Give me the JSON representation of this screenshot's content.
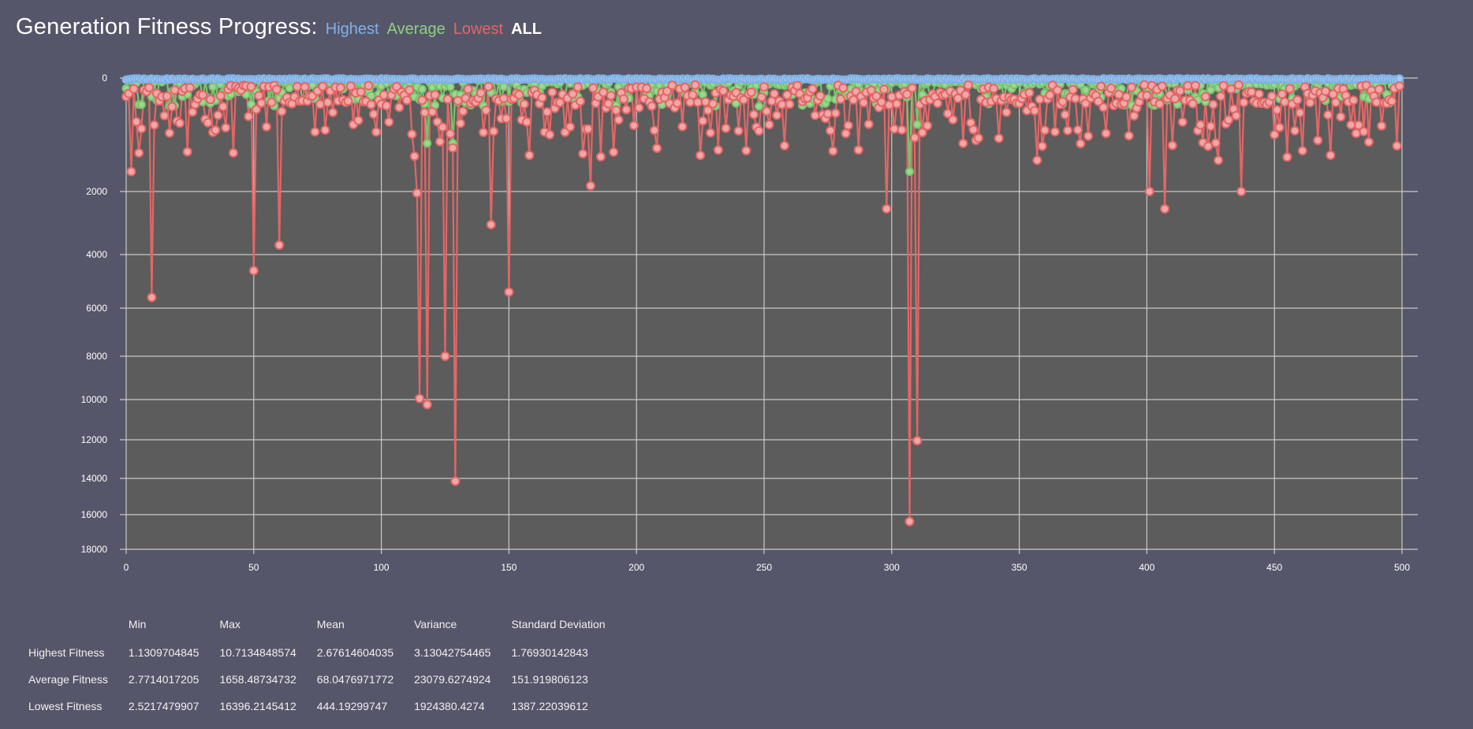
{
  "header": {
    "title": "Generation Fitness Progress:",
    "filters": [
      {
        "label": "Highest",
        "color": "#7fb1e6"
      },
      {
        "label": "Average",
        "color": "#8ed081"
      },
      {
        "label": "Lowest",
        "color": "#e26666"
      },
      {
        "label": "ALL",
        "color": "#ffffff"
      }
    ]
  },
  "colors": {
    "background": "#56566a",
    "plot_area": "#5c5c5c",
    "grid": "#c9c9c9",
    "highest": "#7fb1e6",
    "average": "#79c46b",
    "lowest": "#e26666",
    "lowest_fill": "#f2a7a7"
  },
  "chart_data": {
    "type": "line",
    "xlim": [
      0,
      500
    ],
    "xticks": [
      0,
      50,
      100,
      150,
      200,
      250,
      300,
      350,
      400,
      450,
      500
    ],
    "yticks": [
      0,
      2000,
      4000,
      6000,
      8000,
      10000,
      12000,
      14000,
      16000,
      18000
    ],
    "yaxis_inverted": true,
    "series": [
      {
        "name": "Highest",
        "values": [
          2,
          3,
          2,
          3,
          2,
          2,
          3,
          2,
          3,
          2,
          2,
          3,
          2,
          2,
          3,
          2,
          3,
          2,
          2,
          3
        ]
      },
      {
        "name": "Average",
        "values": [
          60,
          380,
          250,
          1150,
          420,
          1650,
          210,
          800,
          450,
          150
        ]
      },
      {
        "name": "Lowest",
        "spikes": [
          {
            "x": 2,
            "y": 1650
          },
          {
            "x": 10,
            "y": 5600
          },
          {
            "x": 50,
            "y": 4600
          },
          {
            "x": 60,
            "y": 3700
          },
          {
            "x": 114,
            "y": 2050
          },
          {
            "x": 115,
            "y": 9950
          },
          {
            "x": 118,
            "y": 10250
          },
          {
            "x": 125,
            "y": 8000
          },
          {
            "x": 129,
            "y": 14150
          },
          {
            "x": 143,
            "y": 3050
          },
          {
            "x": 150,
            "y": 5400
          },
          {
            "x": 182,
            "y": 1900
          },
          {
            "x": 298,
            "y": 2550
          },
          {
            "x": 307,
            "y": 16396
          },
          {
            "x": 310,
            "y": 12050
          },
          {
            "x": 357,
            "y": 1450
          },
          {
            "x": 401,
            "y": 2000
          },
          {
            "x": 407,
            "y": 2550
          },
          {
            "x": 428,
            "y": 1450
          },
          {
            "x": 437,
            "y": 2000
          }
        ]
      }
    ]
  },
  "stats": {
    "headers": [
      "Min",
      "Max",
      "Mean",
      "Variance",
      "Standard Deviation"
    ],
    "rows": [
      {
        "label": "Highest Fitness",
        "values": [
          "1.1309704845",
          "10.7134848574",
          "2.67614604035",
          "3.13042754465",
          "1.76930142843"
        ]
      },
      {
        "label": "Average Fitness",
        "values": [
          "2.7714017205",
          "1658.48734732",
          "68.0476971772",
          "23079.6274924",
          "151.919806123"
        ]
      },
      {
        "label": "Lowest Fitness",
        "values": [
          "2.5217479907",
          "16396.2145412",
          "444.19299747",
          "1924380.4274",
          "1387.22039612"
        ]
      }
    ]
  }
}
